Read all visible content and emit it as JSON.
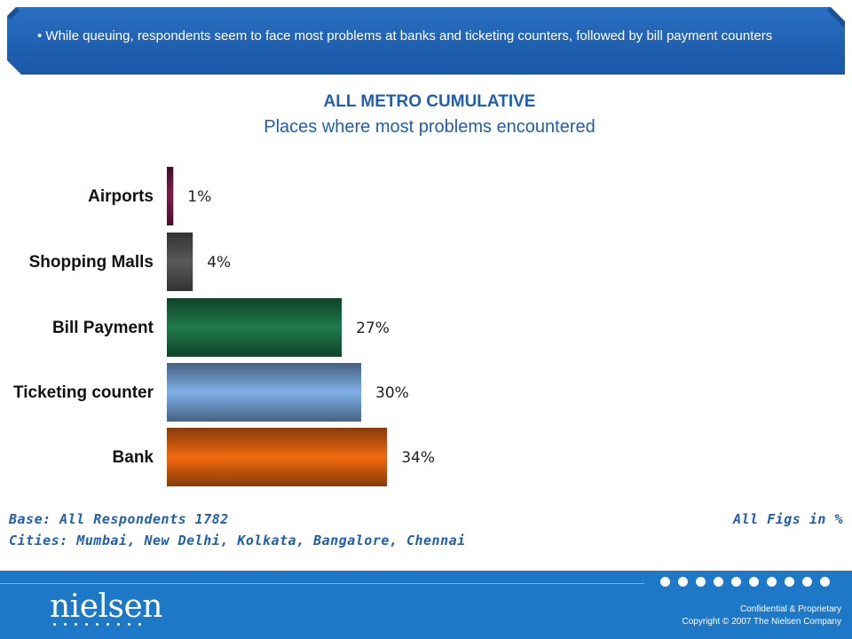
{
  "banner": {
    "text": "• While queuing, respondents seem to face most problems at banks and ticketing counters, followed by bill payment counters"
  },
  "colors": {
    "banner": "#1e5fb0",
    "title": "#1f5fb0",
    "footer": "#1e78c8"
  },
  "chart_data": {
    "type": "bar",
    "orientation": "horizontal",
    "title": "ALL METRO CUMULATIVE",
    "subtitle": "Places where most  problems encountered",
    "categories": [
      "Airports",
      "Shopping Malls",
      "Bill Payment",
      "Ticketing counter",
      "Bank"
    ],
    "values": [
      1,
      4,
      27,
      30,
      34
    ],
    "value_labels": [
      "1%",
      "4%",
      "27%",
      "30%",
      "34%"
    ],
    "bar_colors": [
      "#7a1c4c",
      "#5a5a5a",
      "#1f7a4c",
      "#7fb0e8",
      "#f26a10"
    ],
    "xlim": [
      0,
      40
    ],
    "grid": false,
    "legend": "none"
  },
  "notes": {
    "base": "Base: All Respondents 1782",
    "cities": "Cities: Mumbai, New Delhi, Kolkata, Bangalore, Chennai",
    "figs": "All Figs in %"
  },
  "footer": {
    "logo": "nielsen",
    "confidential": "Confidential & Proprietary",
    "copyright": "Copyright © 2007 The Nielsen Company"
  }
}
